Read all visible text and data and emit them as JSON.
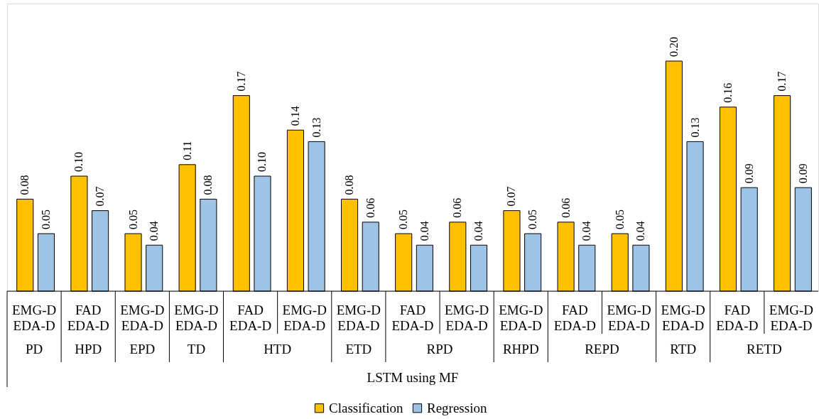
{
  "chart_data": {
    "type": "bar",
    "categories": [
      "EMG-D\nEDA-D",
      "FAD\nEDA-D",
      "EMG-D\nEDA-D",
      "EMG-D\nEDA-D",
      "FAD\nEDA-D",
      "EMG-D\nEDA-D",
      "EMG-D\nEDA-D",
      "FAD\nEDA-D",
      "EMG-D\nEDA-D",
      "EMG-D\nEDA-D",
      "FAD\nEDA-D",
      "EMG-D\nEDA-D",
      "EMG-D\nEDA-D",
      "FAD\nEDA-D",
      "EMG-D\nEDA-D"
    ],
    "annotations": [
      "PD",
      "HPD",
      "EPD",
      "TD",
      "HTD",
      "ETD",
      "RPD",
      "RHPD",
      "REPD",
      "RTD",
      "RETD",
      "LSTM using MF"
    ],
    "series": [
      {
        "name": "Classification",
        "color": "#ffc000",
        "values": [
          0.08,
          0.1,
          0.05,
          0.11,
          0.17,
          0.14,
          0.08,
          0.05,
          0.06,
          0.07,
          0.06,
          0.05,
          0.2,
          0.16,
          0.17
        ],
        "value_labels": [
          "0.08",
          "0.10",
          "0.05",
          "0.11",
          "0.17",
          "0.14",
          "0.08",
          "0.05",
          "0.06",
          "0.07",
          "0.06",
          "0.05",
          "0.20",
          "0.16",
          "0.17"
        ]
      },
      {
        "name": "Regression",
        "color": "#9dc3e6",
        "values": [
          0.05,
          0.07,
          0.04,
          0.08,
          0.1,
          0.13,
          0.06,
          0.04,
          0.04,
          0.05,
          0.04,
          0.04,
          0.13,
          0.09,
          0.09
        ],
        "value_labels": [
          "0.05",
          "0.07",
          "0.04",
          "0.08",
          "0.10",
          "0.13",
          "0.06",
          "0.04",
          "0.04",
          "0.05",
          "0.04",
          "0.04",
          "0.13",
          "0.09",
          "0.09"
        ]
      }
    ],
    "legend": "bottom"
  }
}
